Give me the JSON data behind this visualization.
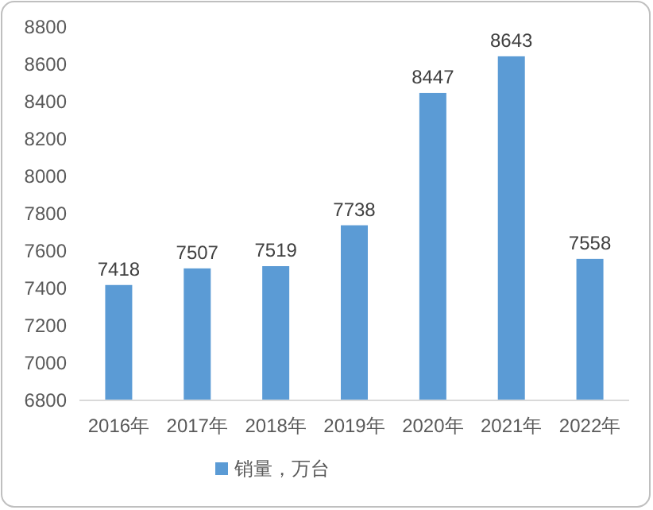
{
  "chart_data": {
    "type": "bar",
    "categories": [
      "2016年",
      "2017年",
      "2018年",
      "2019年",
      "2020年",
      "2021年",
      "2022年"
    ],
    "series": [
      {
        "name": "销量，万台",
        "color": "#5b9bd5",
        "values": [
          7418,
          7507,
          7519,
          7738,
          8447,
          8643,
          7558
        ]
      }
    ],
    "ylim": [
      6800,
      8800
    ],
    "yticks": [
      6800,
      7000,
      7200,
      7400,
      7600,
      7800,
      8000,
      8200,
      8400,
      8600,
      8800
    ],
    "data_labels": true,
    "legend": "bottom",
    "grid": false
  }
}
